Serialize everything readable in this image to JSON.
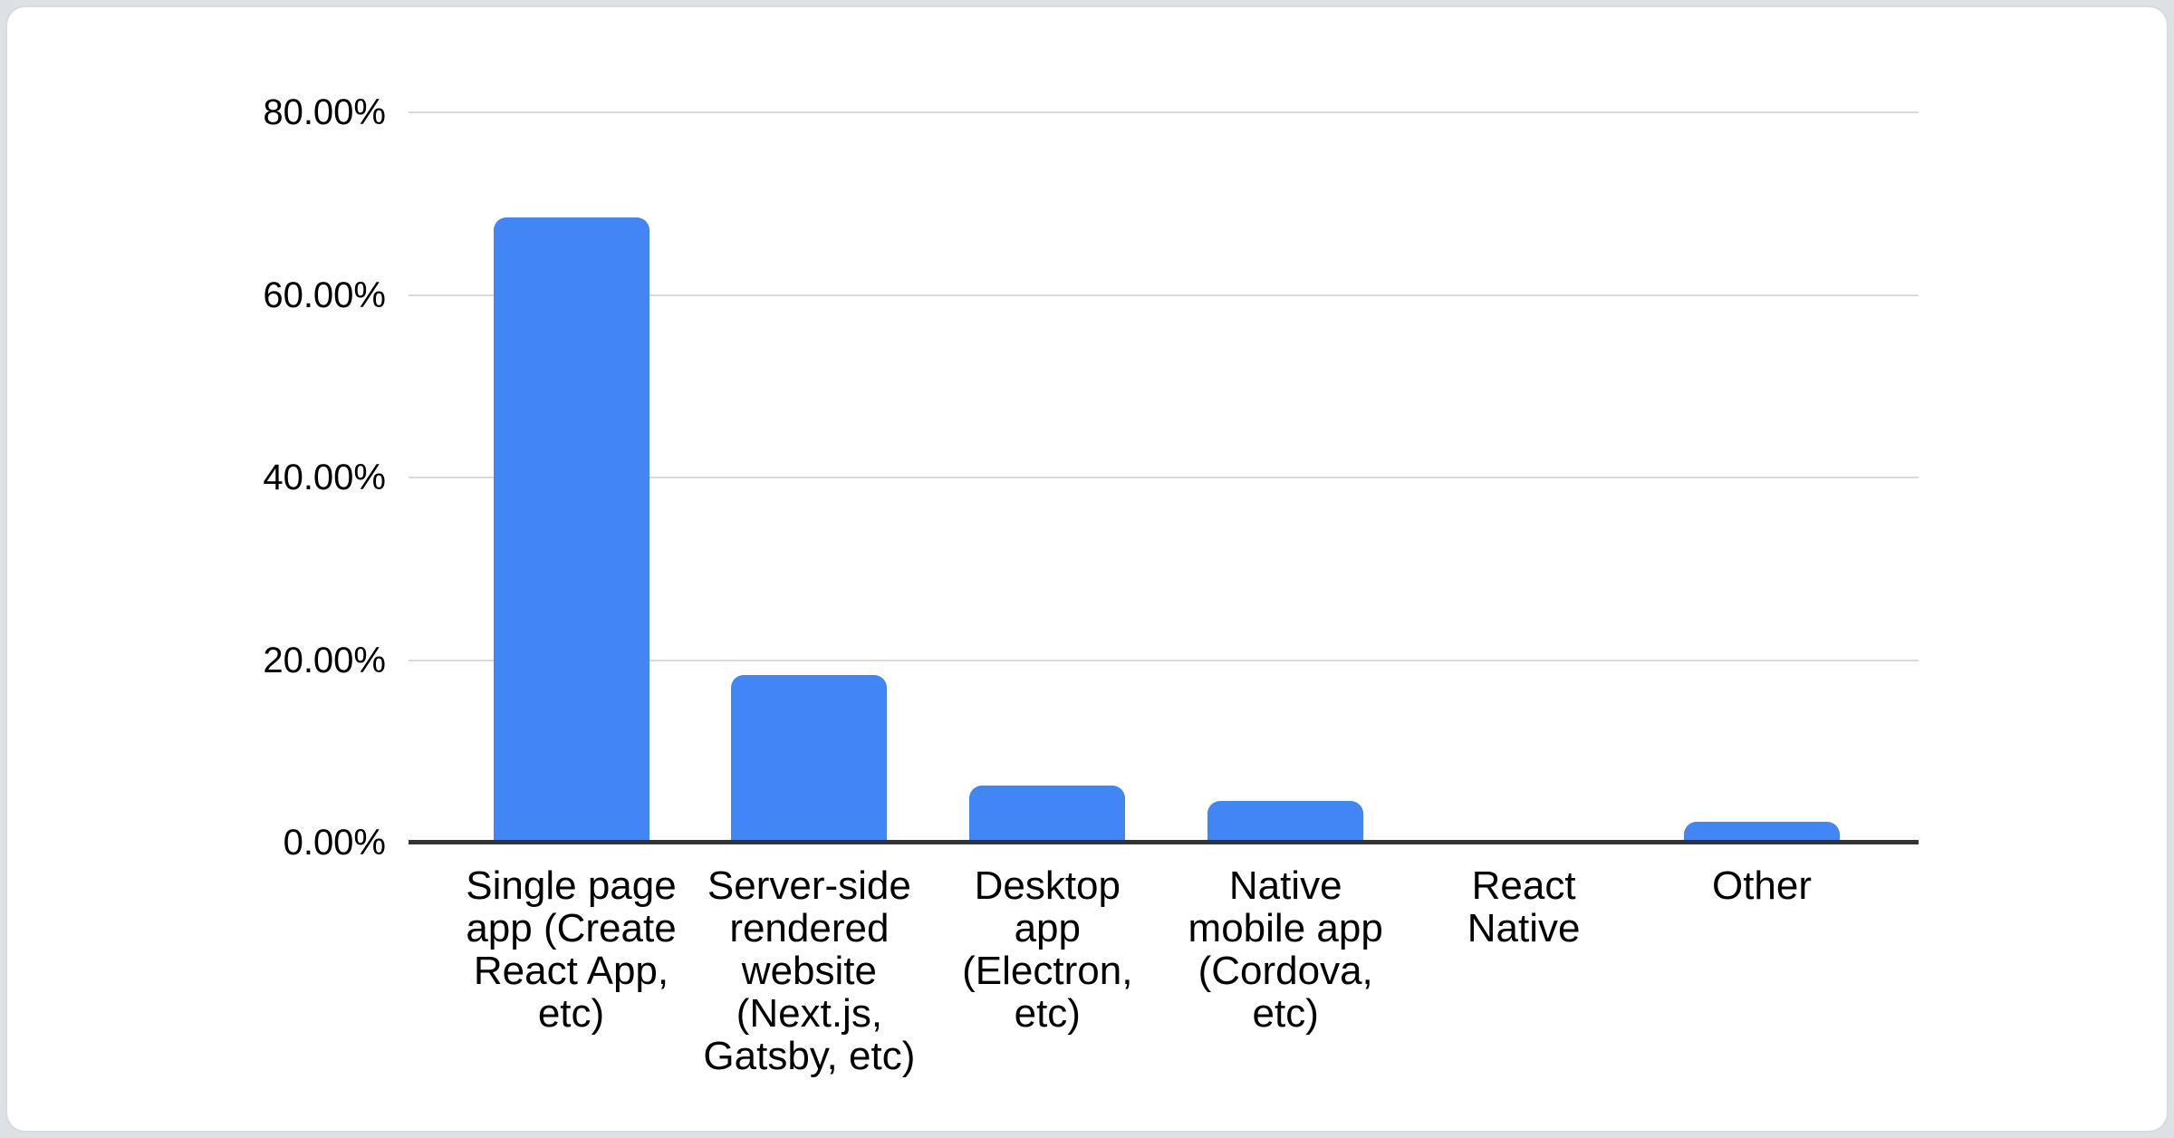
{
  "page": {
    "background_color": "#dde0e4",
    "card_background": "#ffffff",
    "card_border_color": "#d8dade"
  },
  "chart_data": {
    "type": "bar",
    "title": "",
    "xlabel": "",
    "ylabel": "",
    "legend": "none",
    "grid": true,
    "ylim": [
      0,
      80
    ],
    "y_ticks": [
      {
        "value": 80,
        "label": "80.00%"
      },
      {
        "value": 60,
        "label": "60.00%"
      },
      {
        "value": 40,
        "label": "40.00%"
      },
      {
        "value": 20,
        "label": "20.00%"
      },
      {
        "value": 0,
        "label": "0.00%"
      }
    ],
    "categories": [
      [
        "Single page",
        "app (Create",
        "React App,",
        "etc)"
      ],
      [
        "Server-side",
        "rendered",
        "website",
        "(Next.js,",
        "Gatsby, etc)"
      ],
      [
        "Desktop",
        "app",
        "(Electron,",
        "etc)"
      ],
      [
        "Native",
        "mobile app",
        "(Cordova,",
        "etc)"
      ],
      [
        "React",
        "Native"
      ],
      [
        "Other"
      ]
    ],
    "values": [
      68.5,
      18.4,
      6.3,
      4.6,
      0,
      2.3
    ],
    "value_unit": "percent",
    "bar_color": "#4285f4",
    "gridline_color": "#dadada",
    "baseline_color": "#333333",
    "label_color": "#000000"
  }
}
